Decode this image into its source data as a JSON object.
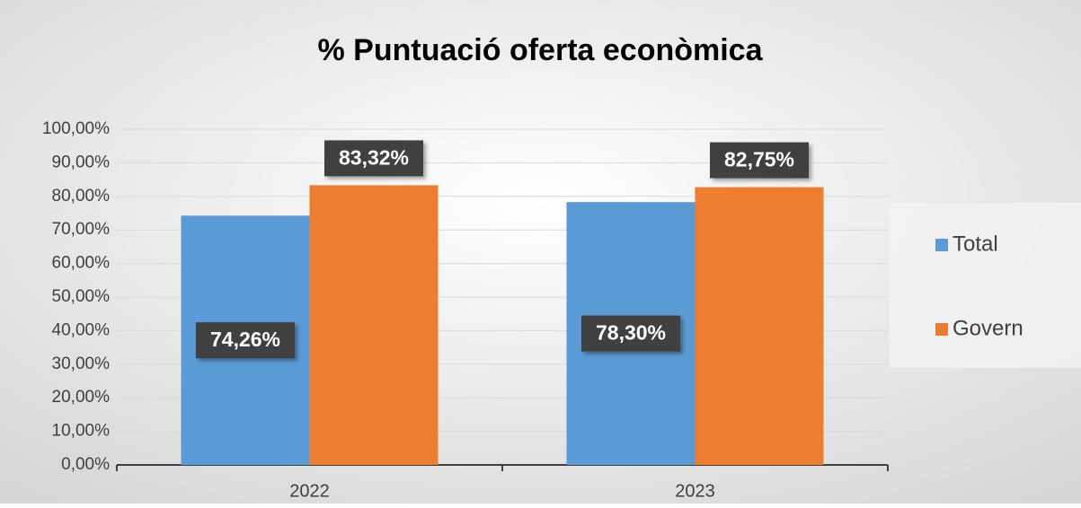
{
  "chart_data": {
    "type": "bar",
    "title": "% Puntuació oferta econòmica",
    "categories": [
      "2022",
      "2023"
    ],
    "series": [
      {
        "name": "Total",
        "color": "#5b9bd5",
        "values": [
          74.26,
          78.3
        ],
        "value_labels": [
          "74,26%",
          "78,30%"
        ]
      },
      {
        "name": "Govern",
        "color": "#ed7d31",
        "values": [
          83.32,
          82.75
        ],
        "value_labels": [
          "83,32%",
          "82,75%"
        ]
      }
    ],
    "ylim": [
      0,
      100
    ],
    "yticks": [
      {
        "value": 0,
        "label": "0,00%"
      },
      {
        "value": 10,
        "label": "10,00%"
      },
      {
        "value": 20,
        "label": "20,00%"
      },
      {
        "value": 30,
        "label": "30,00%"
      },
      {
        "value": 40,
        "label": "40,00%"
      },
      {
        "value": 50,
        "label": "50,00%"
      },
      {
        "value": 60,
        "label": "60,00%"
      },
      {
        "value": 70,
        "label": "70,00%"
      },
      {
        "value": 80,
        "label": "80,00%"
      },
      {
        "value": 90,
        "label": "90,00%"
      },
      {
        "value": 100,
        "label": "100,00%"
      }
    ],
    "grid": true,
    "legend": "right"
  }
}
